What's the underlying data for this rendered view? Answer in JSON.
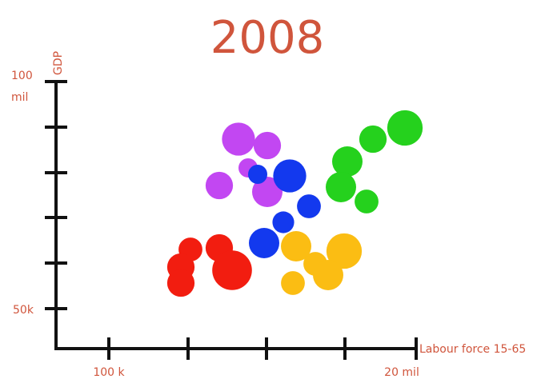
{
  "chart_data": {
    "type": "scatter",
    "title": "2008",
    "xlabel": "Labour force 15-65",
    "ylabel": "GDP",
    "x_tick_labels": [
      "100 k",
      "20 mil"
    ],
    "y_tick_labels": [
      "100 mil",
      "50k"
    ],
    "grid": false,
    "legend": "none",
    "colors": {
      "title": "#d0553c",
      "labels": "#d0553c",
      "axes": "#111111",
      "red": "#f21d10",
      "magenta": "#c247f2",
      "blue": "#1339ee",
      "green": "#25d11d",
      "yellow": "#fbbd13"
    },
    "series": [
      {
        "color": "red",
        "points": [
          {
            "x": 2.1,
            "y": 2.1,
            "size": 2
          },
          {
            "x": 1.95,
            "y": 1.55,
            "size": 3
          },
          {
            "x": 1.95,
            "y": 1.05,
            "size": 3
          },
          {
            "x": 2.55,
            "y": 2.15,
            "size": 3
          },
          {
            "x": 2.75,
            "y": 1.45,
            "size": 8
          }
        ]
      },
      {
        "color": "magenta",
        "points": [
          {
            "x": 2.85,
            "y": 5.55,
            "size": 5
          },
          {
            "x": 3.3,
            "y": 5.35,
            "size": 3
          },
          {
            "x": 2.55,
            "y": 4.1,
            "size": 3
          },
          {
            "x": 3.0,
            "y": 4.65,
            "size": 1
          },
          {
            "x": 3.3,
            "y": 3.9,
            "size": 4
          }
        ]
      },
      {
        "color": "blue",
        "points": [
          {
            "x": 3.15,
            "y": 4.45,
            "size": 1
          },
          {
            "x": 3.65,
            "y": 4.4,
            "size": 5
          },
          {
            "x": 3.95,
            "y": 3.45,
            "size": 2
          },
          {
            "x": 3.25,
            "y": 2.3,
            "size": 4
          },
          {
            "x": 3.55,
            "y": 2.95,
            "size": 1.5
          }
        ]
      },
      {
        "color": "green",
        "points": [
          {
            "x": 5.45,
            "y": 5.9,
            "size": 6
          },
          {
            "x": 4.95,
            "y": 5.55,
            "size": 3
          },
          {
            "x": 4.55,
            "y": 4.85,
            "size": 4
          },
          {
            "x": 4.45,
            "y": 4.05,
            "size": 4
          },
          {
            "x": 4.85,
            "y": 3.6,
            "size": 2
          }
        ]
      },
      {
        "color": "yellow",
        "points": [
          {
            "x": 3.75,
            "y": 2.2,
            "size": 4
          },
          {
            "x": 4.5,
            "y": 2.05,
            "size": 6
          },
          {
            "x": 4.05,
            "y": 1.65,
            "size": 2
          },
          {
            "x": 4.25,
            "y": 1.3,
            "size": 4
          },
          {
            "x": 3.7,
            "y": 1.05,
            "size": 2
          }
        ]
      }
    ]
  }
}
